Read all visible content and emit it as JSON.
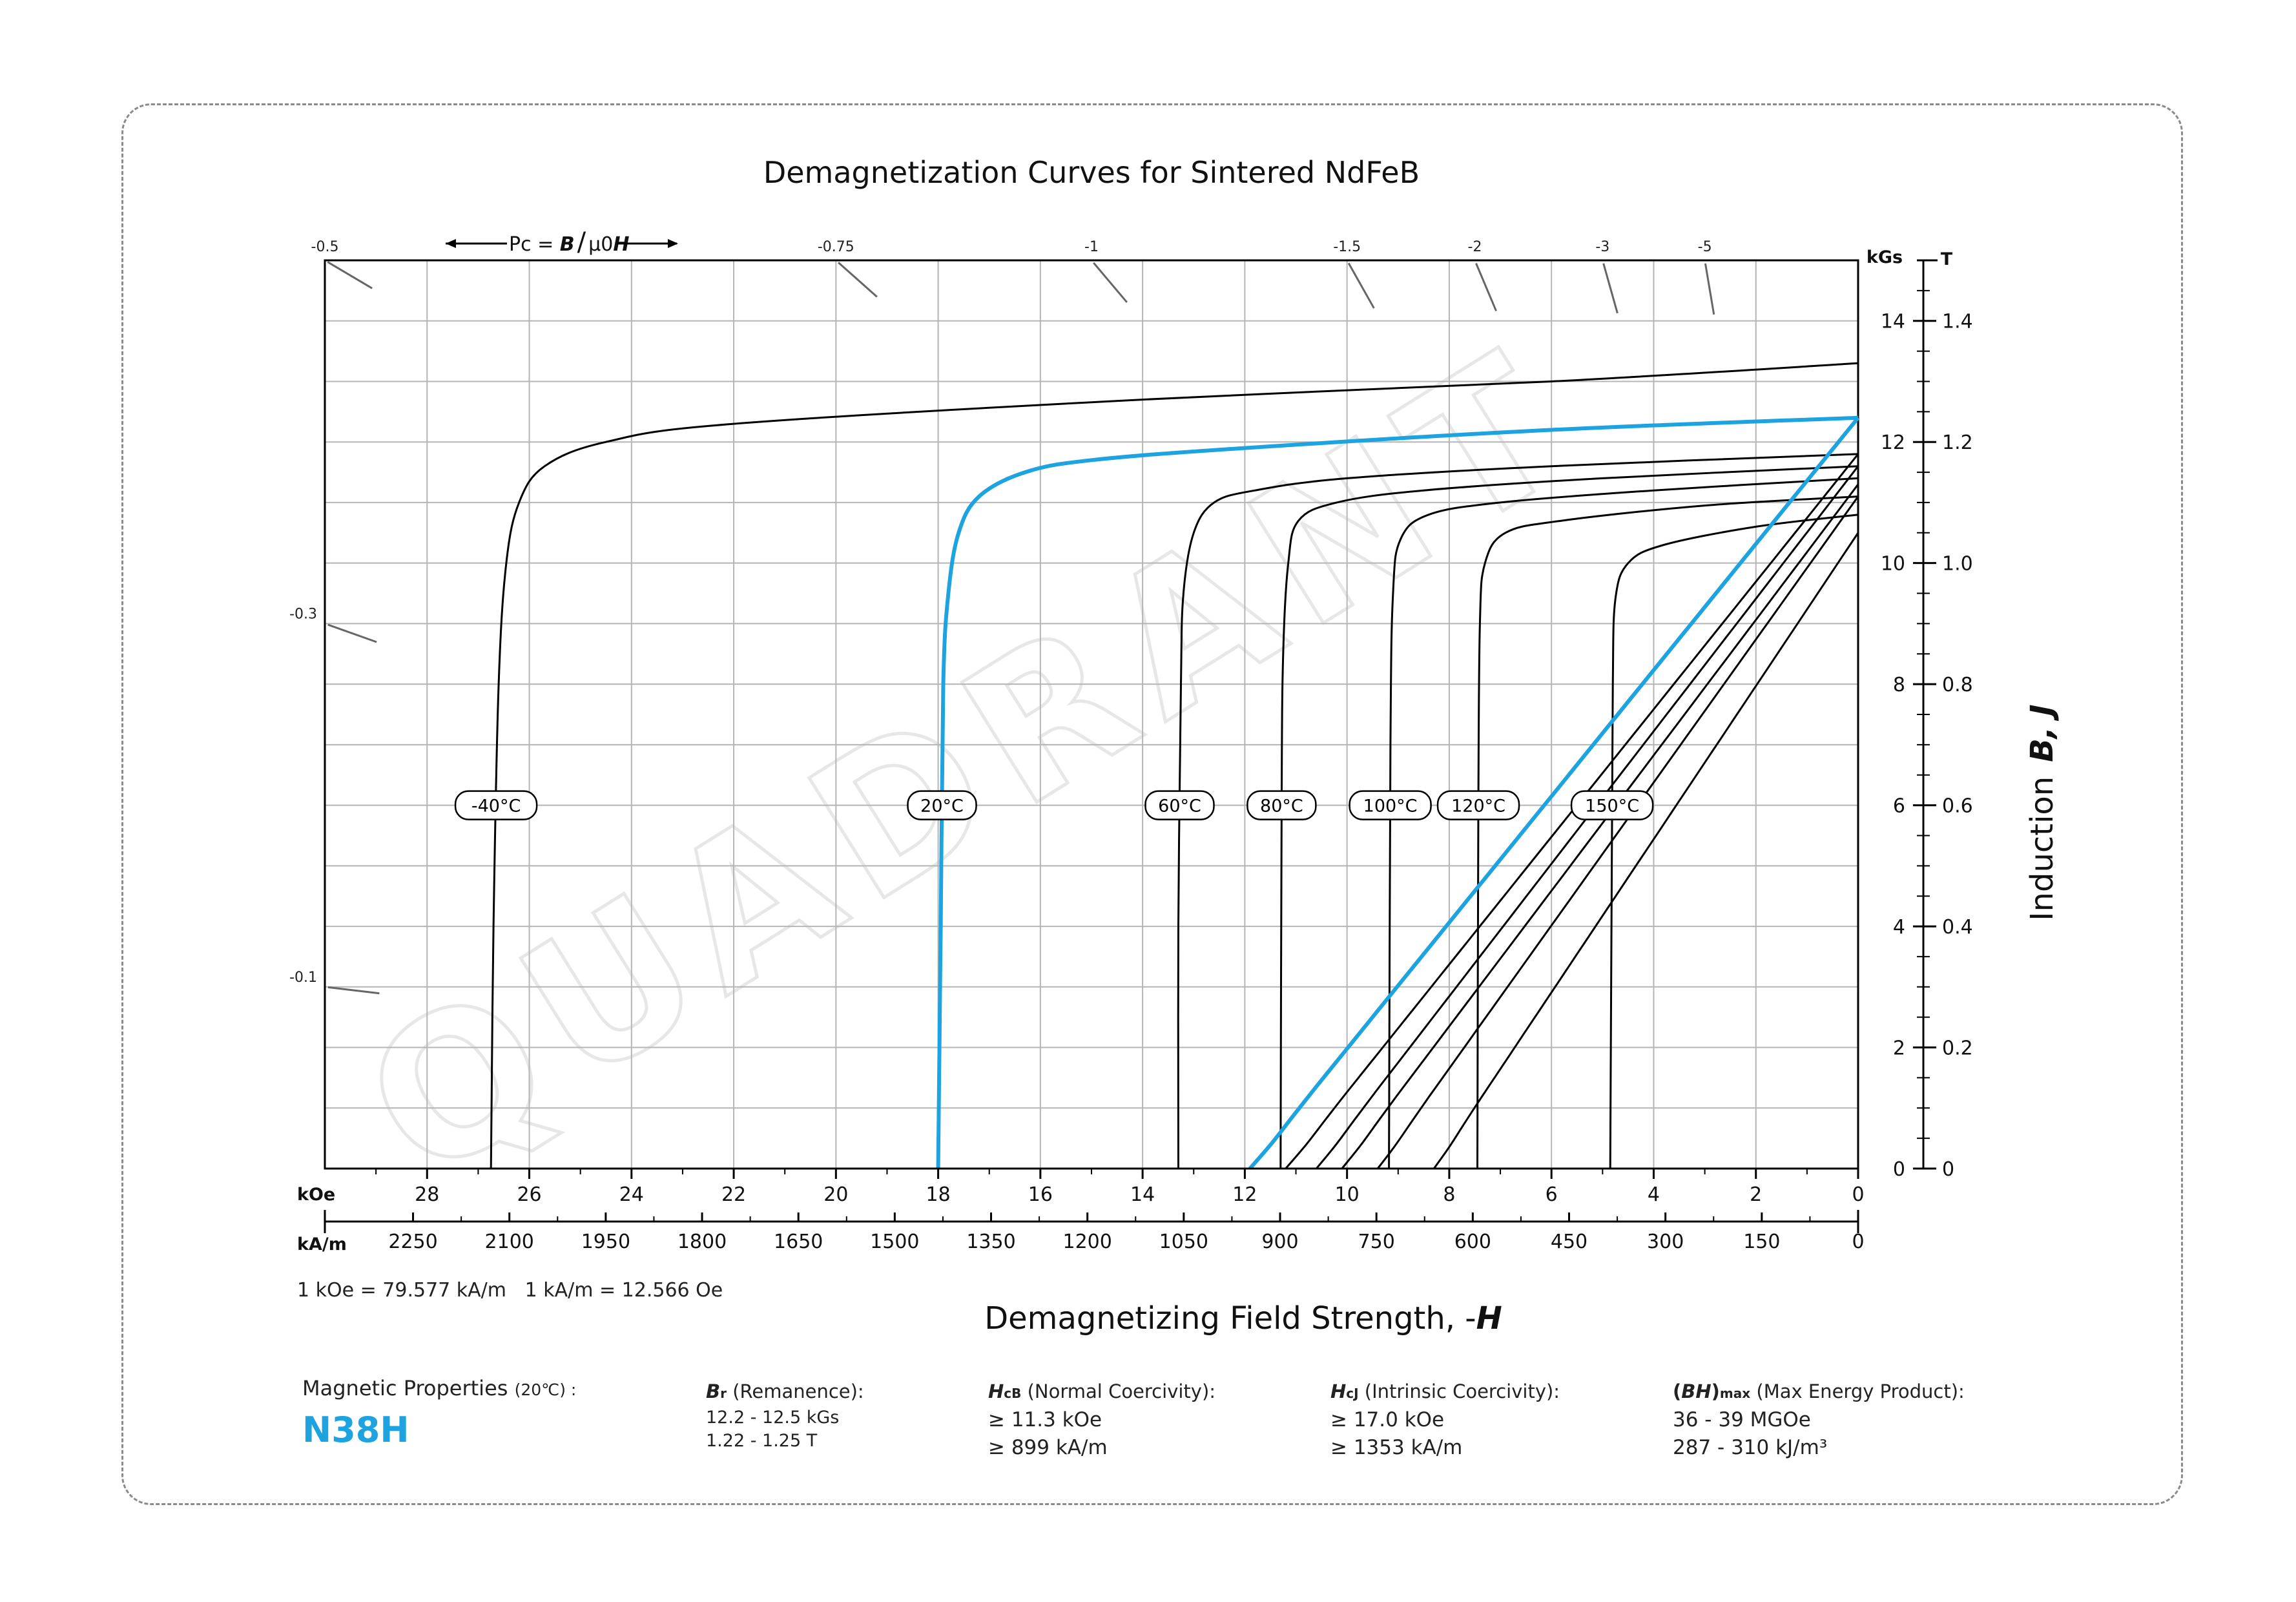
{
  "chart_data": {
    "type": "line",
    "title": "Demagnetization Curves for Sintered NdFeB",
    "xlabel_prefix": "Demagnetizing Field Strength, -",
    "xlabel_symbol": "H",
    "ylabel_prefix": "Induction",
    "ylabel_symbol": "B, J",
    "x_unit_koe": "kOe",
    "x_unit_kam": "kA/m",
    "y_unit_kgs": "kGs",
    "y_unit_t": "T",
    "x_range_koe": [
      30,
      0
    ],
    "y_range_kgs": [
      0,
      15
    ],
    "x_ticks_koe": [
      28,
      26,
      24,
      22,
      20,
      18,
      16,
      14,
      12,
      10,
      8,
      6,
      4,
      2,
      0
    ],
    "x_ticks_kam": [
      2250,
      2100,
      1950,
      1800,
      1650,
      1500,
      1350,
      1200,
      1050,
      900,
      750,
      600,
      450,
      300,
      150,
      0
    ],
    "y_ticks_kgs": [
      0,
      2,
      4,
      6,
      8,
      10,
      12,
      14
    ],
    "y_ticks_t": [
      "0",
      "0.2",
      "0.4",
      "0.6",
      "0.8",
      "1.0",
      "1.2",
      "1.4"
    ],
    "conversion_note": "1 kOe = 79.577 kA/m   1 kA/m = 12.566 Oe",
    "pc_label": {
      "prefix": "Pc = ",
      "b": "B",
      "slash": "/",
      "mu": "μ0",
      "h": "H"
    },
    "pc_lines": [
      {
        "label": "-0.5",
        "x_koe": 30,
        "y_kgs": 15
      },
      {
        "label": "-0.75",
        "x_koe": 20,
        "y_kgs": 15
      },
      {
        "label": "-1",
        "x_koe": 15,
        "y_kgs": 15
      },
      {
        "label": "-1.5",
        "x_koe": 10,
        "y_kgs": 15
      },
      {
        "label": "-2",
        "x_koe": 7.5,
        "y_kgs": 15
      },
      {
        "label": "-3",
        "x_koe": 5,
        "y_kgs": 15
      },
      {
        "label": "-5",
        "x_koe": 3,
        "y_kgs": 15
      },
      {
        "label": "-0.3",
        "x_koe": 30,
        "y_kgs": 9
      },
      {
        "label": "-0.1",
        "x_koe": 30,
        "y_kgs": 3
      }
    ],
    "series": [
      {
        "name": "-40°C",
        "color": "#000000",
        "intrinsic_points": [
          [
            0,
            13.3
          ],
          [
            6,
            13.0
          ],
          [
            14,
            12.7
          ],
          [
            22,
            12.3
          ],
          [
            24.5,
            12.0
          ],
          [
            25.7,
            11.6
          ],
          [
            26.2,
            11.0
          ],
          [
            26.45,
            10.0
          ],
          [
            26.6,
            8.0
          ],
          [
            26.7,
            4.0
          ],
          [
            26.75,
            0
          ]
        ],
        "normal": null
      },
      {
        "name": "20°C",
        "color": "#1ca3e0",
        "intrinsic_points": [
          [
            0,
            12.4
          ],
          [
            6,
            12.2
          ],
          [
            12,
            11.9
          ],
          [
            15,
            11.7
          ],
          [
            16.3,
            11.5
          ],
          [
            17.2,
            11.1
          ],
          [
            17.6,
            10.5
          ],
          [
            17.8,
            9.5
          ],
          [
            17.9,
            8.0
          ],
          [
            17.95,
            4.0
          ],
          [
            18.0,
            0
          ]
        ],
        "normal": {
          "br": 12.4,
          "hcb": 11.9
        }
      },
      {
        "name": "60°C",
        "color": "#000000",
        "intrinsic_points": [
          [
            0,
            11.8
          ],
          [
            6,
            11.6
          ],
          [
            10,
            11.4
          ],
          [
            11.8,
            11.2
          ],
          [
            12.6,
            11.0
          ],
          [
            13.0,
            10.5
          ],
          [
            13.2,
            9.5
          ],
          [
            13.25,
            8.0
          ],
          [
            13.3,
            4.0
          ],
          [
            13.3,
            0
          ]
        ],
        "normal": {
          "br": 11.8,
          "hcb": 11.2
        }
      },
      {
        "name": "80°C",
        "color": "#000000",
        "intrinsic_points": [
          [
            0,
            11.6
          ],
          [
            5,
            11.4
          ],
          [
            8.5,
            11.2
          ],
          [
            10.2,
            11.0
          ],
          [
            10.95,
            10.7
          ],
          [
            11.15,
            10.0
          ],
          [
            11.25,
            8.5
          ],
          [
            11.28,
            6.0
          ],
          [
            11.3,
            0
          ]
        ],
        "normal": {
          "br": 11.6,
          "hcb": 10.6
        }
      },
      {
        "name": "100°C",
        "color": "#000000",
        "intrinsic_points": [
          [
            0,
            11.4
          ],
          [
            4,
            11.2
          ],
          [
            7,
            11.0
          ],
          [
            8.4,
            10.8
          ],
          [
            8.95,
            10.4
          ],
          [
            9.1,
            9.5
          ],
          [
            9.15,
            7.0
          ],
          [
            9.18,
            0
          ]
        ],
        "normal": {
          "br": 11.3,
          "hcb": 10.1
        }
      },
      {
        "name": "120°C",
        "color": "#000000",
        "intrinsic_points": [
          [
            0,
            11.1
          ],
          [
            3,
            10.95
          ],
          [
            5.8,
            10.7
          ],
          [
            6.9,
            10.5
          ],
          [
            7.3,
            10.0
          ],
          [
            7.4,
            9.0
          ],
          [
            7.43,
            6.0
          ],
          [
            7.45,
            0
          ]
        ],
        "normal": {
          "br": 11.1,
          "hcb": 9.4
        }
      },
      {
        "name": "150°C",
        "color": "#000000",
        "intrinsic_points": [
          [
            0,
            10.8
          ],
          [
            2,
            10.6
          ],
          [
            3.8,
            10.3
          ],
          [
            4.5,
            10.0
          ],
          [
            4.75,
            9.4
          ],
          [
            4.8,
            8.0
          ],
          [
            4.82,
            5.0
          ],
          [
            4.85,
            0
          ]
        ],
        "normal": {
          "br": 10.5,
          "hcb": 8.3
        }
      }
    ],
    "watermark": "QUADRANT"
  },
  "properties": {
    "heading": "Magnetic Properties",
    "heading_temp": "(20℃) :",
    "grade": "N38H",
    "remanence": {
      "symbol": "B",
      "sub": "r",
      "label": " (Remanence):",
      "line1": "12.2 - 12.5 kGs",
      "line2": "1.22 - 1.25 T"
    },
    "normal_coercivity": {
      "symbol": "H",
      "sub": "cB",
      "label": " (Normal Coercivity):",
      "line1": "≥ 11.3 kOe",
      "line2": "≥ 899 kA/m"
    },
    "intrinsic_coercivity": {
      "symbol": "H",
      "sub": "cJ",
      "label": " (Intrinsic Coercivity):",
      "line1": "≥ 17.0 kOe",
      "line2": "≥ 1353 kA/m"
    },
    "max_energy": {
      "symbol": "BH",
      "sub": "max",
      "label": " (Max Energy Product):",
      "line1": "36 - 39 MGOe",
      "line2": "287 - 310 kJ/m³"
    }
  },
  "colors": {
    "accent": "#1ca3e0",
    "grid": "#b5b5b5",
    "curve": "#000000"
  }
}
